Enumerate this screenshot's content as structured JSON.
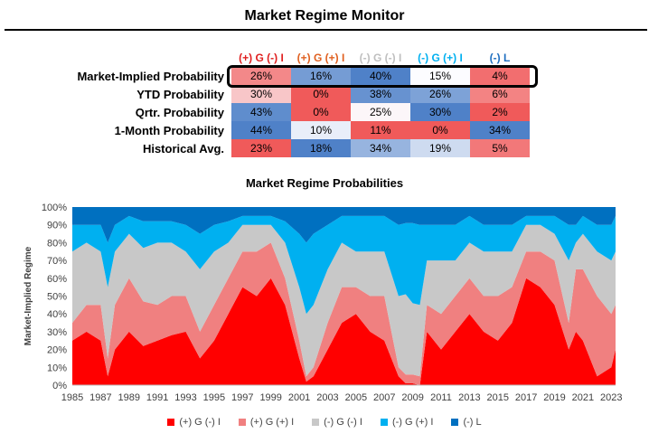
{
  "page_title": "Market Regime Monitor",
  "table": {
    "columns": [
      {
        "label": "(+) G (-) I",
        "color": "#e02020"
      },
      {
        "label": "(+) G (+) I",
        "color": "#e06020"
      },
      {
        "label": "(-) G (-) I",
        "color": "#bfbfbf"
      },
      {
        "label": "(-) G (+) I",
        "color": "#00b0f0"
      },
      {
        "label": "(-) L",
        "color": "#1f6fc0"
      }
    ],
    "rows": [
      {
        "label": "Market-Implied Probability",
        "values": [
          "26%",
          "16%",
          "40%",
          "15%",
          "4%"
        ]
      },
      {
        "label": "YTD Probability",
        "values": [
          "30%",
          "0%",
          "38%",
          "26%",
          "6%"
        ]
      },
      {
        "label": "Qrtr. Probability",
        "values": [
          "43%",
          "0%",
          "25%",
          "30%",
          "2%"
        ]
      },
      {
        "label": "1-Month Probability",
        "values": [
          "44%",
          "10%",
          "11%",
          "0%",
          "34%"
        ]
      },
      {
        "label": "Historical Avg.",
        "values": [
          "23%",
          "18%",
          "34%",
          "19%",
          "5%"
        ]
      }
    ]
  },
  "chart_data": {
    "type": "area",
    "title": "Market Regime Probabilities",
    "ylabel": "Market-Implied Regime",
    "xlabel": "",
    "ylim": [
      0,
      100
    ],
    "y_ticks": [
      "0%",
      "10%",
      "20%",
      "30%",
      "40%",
      "50%",
      "60%",
      "70%",
      "80%",
      "90%",
      "100%"
    ],
    "x_ticks": [
      "1985",
      "1987",
      "1989",
      "1991",
      "1993",
      "1995",
      "1997",
      "1999",
      "2001",
      "2003",
      "2005",
      "2007",
      "2009",
      "2011",
      "2013",
      "2015",
      "2017",
      "2019",
      "2021",
      "2023"
    ],
    "stacked": true,
    "legend_position": "bottom",
    "x": [
      1985.0,
      1986.0,
      1987.0,
      1987.5,
      1988.0,
      1989.0,
      1990.0,
      1991.0,
      1992.0,
      1993.0,
      1994.0,
      1995.0,
      1996.0,
      1997.0,
      1998.0,
      1999.0,
      2000.0,
      2001.0,
      2001.5,
      2002.0,
      2003.0,
      2004.0,
      2005.0,
      2006.0,
      2007.0,
      2008.0,
      2008.5,
      2009.0,
      2009.5,
      2010.0,
      2011.0,
      2012.0,
      2013.0,
      2014.0,
      2015.0,
      2016.0,
      2017.0,
      2018.0,
      2019.0,
      2020.0,
      2020.5,
      2021.0,
      2022.0,
      2023.0,
      2023.3
    ],
    "series": [
      {
        "name": "(+) G (-) I",
        "color": "#ff0000",
        "values": [
          25,
          30,
          25,
          5,
          20,
          30,
          22,
          25,
          28,
          30,
          15,
          25,
          40,
          55,
          50,
          60,
          45,
          15,
          2,
          5,
          20,
          35,
          40,
          30,
          25,
          5,
          1,
          1,
          0,
          30,
          20,
          30,
          40,
          30,
          25,
          35,
          60,
          55,
          45,
          20,
          30,
          25,
          5,
          10,
          20
        ]
      },
      {
        "name": "(+) G (+) I",
        "color": "#f08080",
        "values": [
          10,
          15,
          20,
          10,
          25,
          30,
          25,
          20,
          22,
          20,
          15,
          20,
          20,
          20,
          25,
          20,
          15,
          10,
          3,
          5,
          15,
          20,
          15,
          20,
          25,
          5,
          5,
          5,
          5,
          15,
          20,
          20,
          20,
          20,
          25,
          20,
          15,
          20,
          25,
          15,
          35,
          40,
          45,
          30,
          25
        ]
      },
      {
        "name": "(-) G (-) I",
        "color": "#c8c8c8",
        "values": [
          40,
          35,
          30,
          40,
          30,
          25,
          30,
          35,
          30,
          25,
          35,
          30,
          20,
          15,
          15,
          10,
          20,
          30,
          35,
          35,
          30,
          25,
          20,
          25,
          25,
          40,
          45,
          40,
          40,
          25,
          30,
          20,
          20,
          25,
          25,
          20,
          15,
          15,
          15,
          35,
          15,
          20,
          25,
          30,
          30
        ]
      },
      {
        "name": "(-) G (+) I",
        "color": "#00b0f0",
        "values": [
          15,
          10,
          15,
          25,
          15,
          10,
          15,
          12,
          12,
          15,
          20,
          15,
          12,
          5,
          5,
          5,
          12,
          30,
          40,
          40,
          25,
          15,
          20,
          20,
          20,
          40,
          40,
          45,
          45,
          20,
          20,
          20,
          15,
          15,
          15,
          15,
          5,
          5,
          10,
          20,
          10,
          10,
          15,
          20,
          20
        ]
      },
      {
        "name": "(-) L",
        "color": "#0070c0",
        "values": [
          10,
          10,
          10,
          20,
          10,
          5,
          8,
          8,
          8,
          10,
          15,
          10,
          8,
          5,
          5,
          5,
          8,
          15,
          20,
          15,
          10,
          5,
          5,
          5,
          5,
          10,
          9,
          9,
          10,
          10,
          10,
          10,
          5,
          10,
          10,
          10,
          5,
          5,
          5,
          10,
          10,
          5,
          10,
          10,
          5
        ]
      }
    ]
  }
}
